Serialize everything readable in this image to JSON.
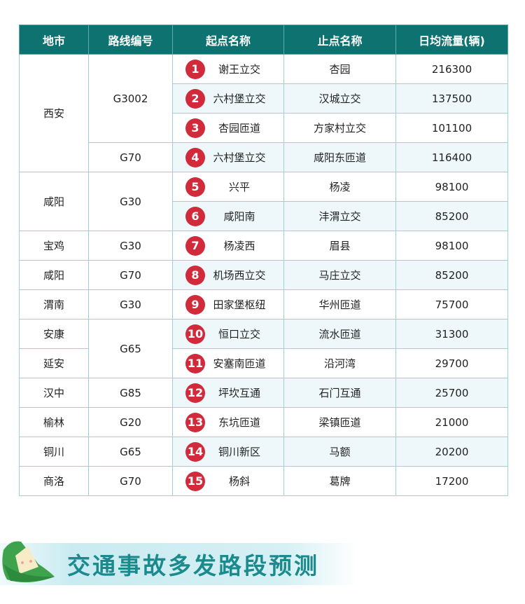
{
  "table": {
    "headers": [
      "地市",
      "路线编号",
      "起点名称",
      "止点名称",
      "日均流量(辆)"
    ],
    "rows": [
      {
        "city": "西安",
        "route": "G3002",
        "num": "1",
        "start": "谢王立交",
        "end": "杏园",
        "flow": "216300"
      },
      {
        "city": "",
        "route": "",
        "num": "2",
        "start": "六村堡立交",
        "end": "汉城立交",
        "flow": "137500"
      },
      {
        "city": "",
        "route": "",
        "num": "3",
        "start": "杏园匝道",
        "end": "方家村立交",
        "flow": "101100"
      },
      {
        "city": "",
        "route": "G70",
        "num": "4",
        "start": "六村堡立交",
        "end": "咸阳东匝道",
        "flow": "116400"
      },
      {
        "city": "咸阳",
        "route": "G30",
        "num": "5",
        "start": "兴平",
        "end": "杨凌",
        "flow": "98100"
      },
      {
        "city": "",
        "route": "",
        "num": "6",
        "start": "咸阳南",
        "end": "沣渭立交",
        "flow": "85200"
      },
      {
        "city": "宝鸡",
        "route": "G30",
        "num": "7",
        "start": "杨凌西",
        "end": "眉县",
        "flow": "98100"
      },
      {
        "city": "咸阳",
        "route": "G70",
        "num": "8",
        "start": "机场西立交",
        "end": "马庄立交",
        "flow": "85200"
      },
      {
        "city": "渭南",
        "route": "G30",
        "num": "9",
        "start": "田家堡枢纽",
        "end": "华州匝道",
        "flow": "75700"
      },
      {
        "city": "安康",
        "route": "G65",
        "num": "10",
        "start": "恒口立交",
        "end": "流水匝道",
        "flow": "31300"
      },
      {
        "city": "延安",
        "route": "",
        "num": "11",
        "start": "安塞南匝道",
        "end": "沿河湾",
        "flow": "29700"
      },
      {
        "city": "汉中",
        "route": "G85",
        "num": "12",
        "start": "坪坎互通",
        "end": "石门互通",
        "flow": "25700"
      },
      {
        "city": "榆林",
        "route": "G20",
        "num": "13",
        "start": "东坑匝道",
        "end": "梁镇匝道",
        "flow": "21000"
      },
      {
        "city": "铜川",
        "route": "G65",
        "num": "14",
        "start": "铜川新区",
        "end": "马额",
        "flow": "20200"
      },
      {
        "city": "商洛",
        "route": "G70",
        "num": "15",
        "start": "杨斜",
        "end": "葛牌",
        "flow": "17200"
      }
    ]
  },
  "banner": {
    "title": "交通事故多发路段预测",
    "icon": "zongzi-icon"
  },
  "colors": {
    "header": "#0e7370",
    "badge": "#d12a3a",
    "banner_text": "#1a8a8c"
  }
}
